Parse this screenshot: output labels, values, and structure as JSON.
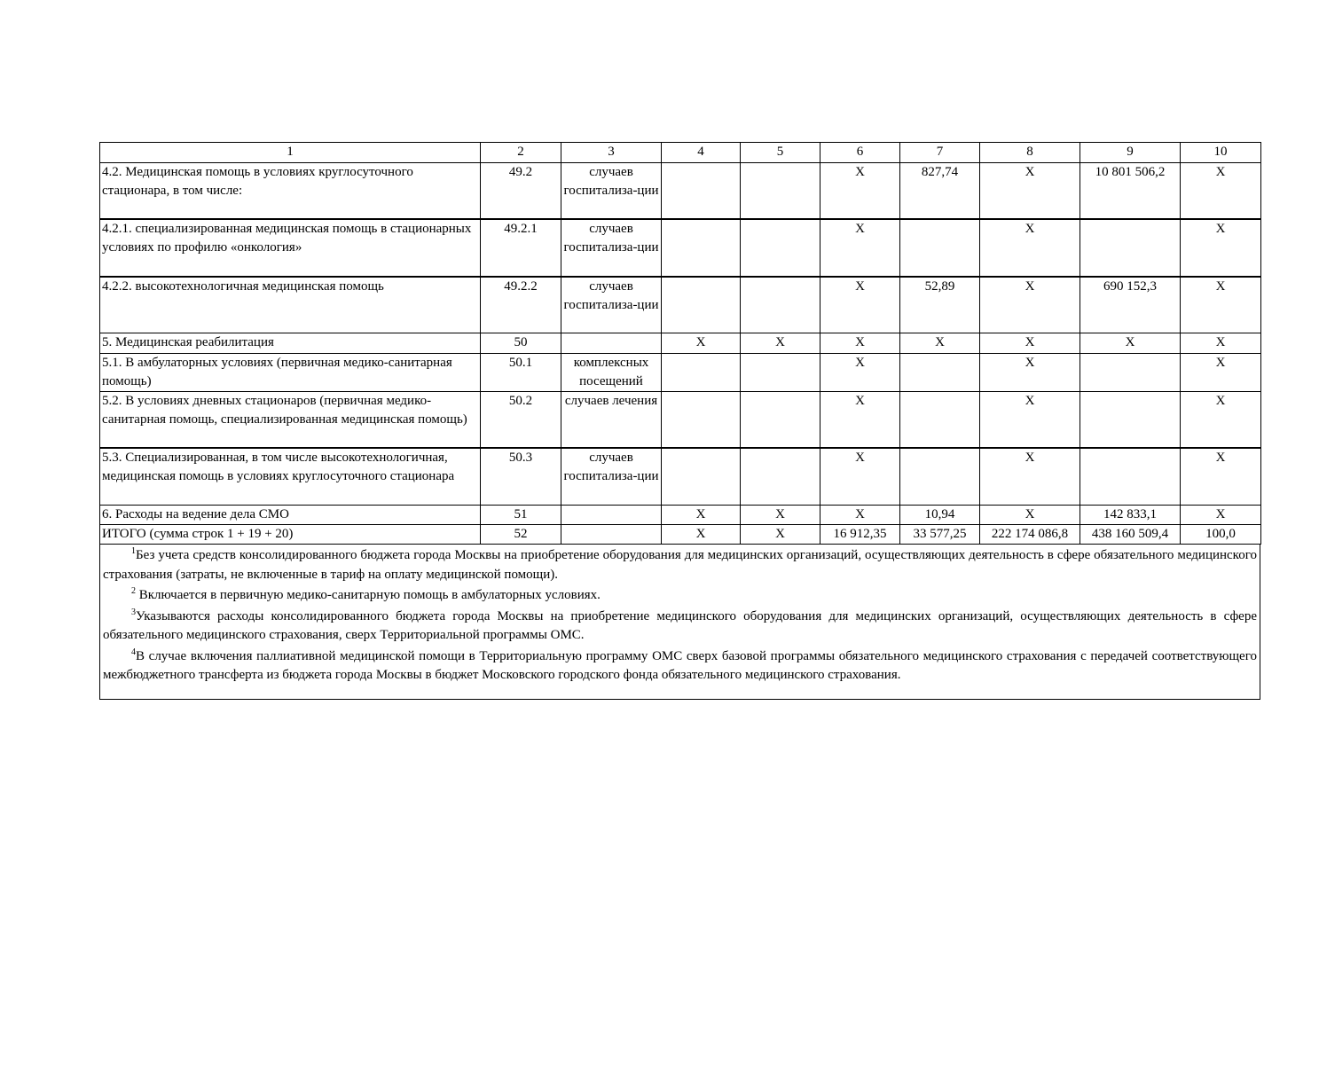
{
  "header": [
    "1",
    "2",
    "3",
    "4",
    "5",
    "6",
    "7",
    "8",
    "9",
    "10"
  ],
  "rows": [
    {
      "name": "4.2. Медицинская помощь в условиях круглосуточного стационара, в том числе:",
      "code": "49.2",
      "unit": "случаев госпитализа-ции",
      "c4": "",
      "c5": "",
      "c6": "X",
      "c7": "827,74",
      "c8": "X",
      "c9": "10 801 506,2",
      "c10": "X"
    },
    {
      "name": "4.2.1. специализированная медицинская помощь в стационарных условиях по профилю «онкология»",
      "code": "49.2.1",
      "unit": "случаев госпитализа-ции",
      "c4": "",
      "c5": "",
      "c6": "X",
      "c7": "",
      "c8": "X",
      "c9": "",
      "c10": "X"
    },
    {
      "name": "4.2.2. высокотехнологичная медицинская помощь",
      "code": "49.2.2",
      "unit": "случаев госпитализа-ции",
      "c4": "",
      "c5": "",
      "c6": "X",
      "c7": "52,89",
      "c8": "X",
      "c9": "690 152,3",
      "c10": "X"
    },
    {
      "name": "5. Медицинская реабилитация",
      "code": "50",
      "unit": "",
      "c4": "X",
      "c5": "X",
      "c6": "X",
      "c7": "X",
      "c8": "X",
      "c9": "X",
      "c10": "X"
    },
    {
      "name": "5.1. В амбулаторных условиях (первичная медико-санитарная помощь)",
      "code": "50.1",
      "unit": "комплексных посещений",
      "c4": "",
      "c5": "",
      "c6": "X",
      "c7": "",
      "c8": "X",
      "c9": "",
      "c10": "X"
    },
    {
      "name": "5.2. В условиях дневных стационаров (первичная медико-санитарная помощь, специализированная медицинская помощь)",
      "code": "50.2",
      "unit": "случаев лечения",
      "c4": "",
      "c5": "",
      "c6": "X",
      "c7": "",
      "c8": "X",
      "c9": "",
      "c10": "X"
    },
    {
      "name": "5.3. Специализированная, в том числе высокотехнологичная, медицинская помощь в условиях круглосуточного стационара",
      "code": "50.3",
      "unit": "случаев госпитализа-ции",
      "c4": "",
      "c5": "",
      "c6": "X",
      "c7": "",
      "c8": "X",
      "c9": "",
      "c10": "X"
    },
    {
      "name": "6. Расходы на ведение дела СМО",
      "code": "51",
      "unit": "",
      "c4": "X",
      "c5": "X",
      "c6": "X",
      "c7": "10,94",
      "c8": "X",
      "c9": "142 833,1",
      "c10": "X"
    },
    {
      "name": "ИТОГО (сумма строк 1 + 19 + 20)",
      "code": "52",
      "unit": "",
      "c4": "X",
      "c5": "X",
      "c6": "16 912,35",
      "c7": "33 577,25",
      "c8": "222 174 086,8",
      "c9": "438 160 509,4",
      "c10": "100,0"
    }
  ],
  "footnotes": [
    {
      "mark": "1",
      "text": "Без учета средств консолидированного бюджета города Москвы на приобретение оборудования для медицинских организаций, осуществляющих деятельность в сфере обязательного медицинского страхования (затраты, не включенные в тариф на оплату медицинской помощи)."
    },
    {
      "mark": "2",
      "text": " Включается в первичную медико-санитарную помощь в амбулаторных условиях."
    },
    {
      "mark": "3",
      "text": "Указываются расходы консолидированного бюджета города Москвы на приобретение медицинского оборудования для медицинских организаций, осуществляющих деятельность в сфере обязательного медицинского страхования, сверх Территориальной программы ОМС."
    },
    {
      "mark": "4",
      "text": "В случае включения паллиативной медицинской помощи в Территориальную программу ОМС сверх базовой программы обязательного медицинского страхования с передачей соответствующего межбюджетного трансферта из бюджета города Москвы в бюджет Московского городского фонда обязательного медицинского страхования."
    }
  ]
}
